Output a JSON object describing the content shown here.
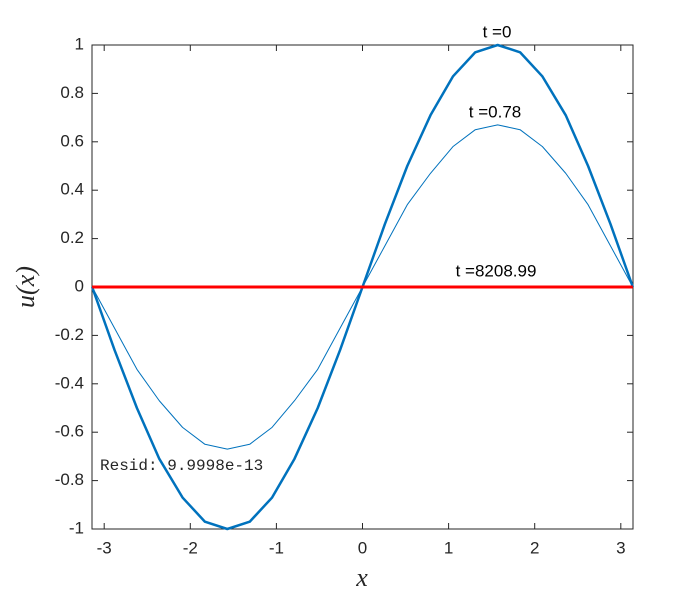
{
  "chart_data": {
    "type": "line",
    "x_label": "x",
    "y_label": "u(x)",
    "xlim": [
      -3.1416,
      3.1416
    ],
    "xticks": [
      -3,
      -2,
      -1,
      0,
      1,
      2,
      3
    ],
    "ylim": [
      -1,
      1
    ],
    "yticks": [
      -1,
      -0.8,
      -0.6,
      -0.4,
      -0.2,
      0,
      0.2,
      0.4,
      0.6,
      0.8,
      1
    ],
    "x": [
      -3.14,
      -2.88,
      -2.62,
      -2.36,
      -2.09,
      -1.83,
      -1.57,
      -1.31,
      -1.05,
      -0.79,
      -0.52,
      -0.26,
      0,
      0.26,
      0.52,
      0.79,
      1.05,
      1.31,
      1.57,
      1.83,
      2.09,
      2.36,
      2.62,
      2.88,
      3.14
    ],
    "series": [
      {
        "name": "t =0",
        "color": "#0072bd",
        "values": [
          0,
          -0.26,
          -0.5,
          -0.71,
          -0.87,
          -0.97,
          -1,
          -0.97,
          -0.87,
          -0.71,
          -0.5,
          -0.26,
          0,
          0.26,
          0.5,
          0.71,
          0.87,
          0.97,
          1,
          0.97,
          0.87,
          0.71,
          0.5,
          0.26,
          0
        ]
      },
      {
        "name": "t =0.78",
        "color": "#0072bd",
        "values": [
          0,
          -0.17,
          -0.34,
          -0.47,
          -0.58,
          -0.65,
          -0.67,
          -0.65,
          -0.58,
          -0.47,
          -0.34,
          -0.17,
          0,
          0.17,
          0.34,
          0.47,
          0.58,
          0.65,
          0.67,
          0.65,
          0.58,
          0.47,
          0.34,
          0.17,
          0
        ]
      },
      {
        "name": "t =8208.99",
        "color": "#ff0000",
        "values": [
          0,
          0,
          0,
          0,
          0,
          0,
          0,
          0,
          0,
          0,
          0,
          0,
          0,
          0,
          0,
          0,
          0,
          0,
          0,
          0,
          0,
          0,
          0,
          0,
          0
        ]
      }
    ],
    "annotation": "Resid: 9.9998e-13"
  }
}
